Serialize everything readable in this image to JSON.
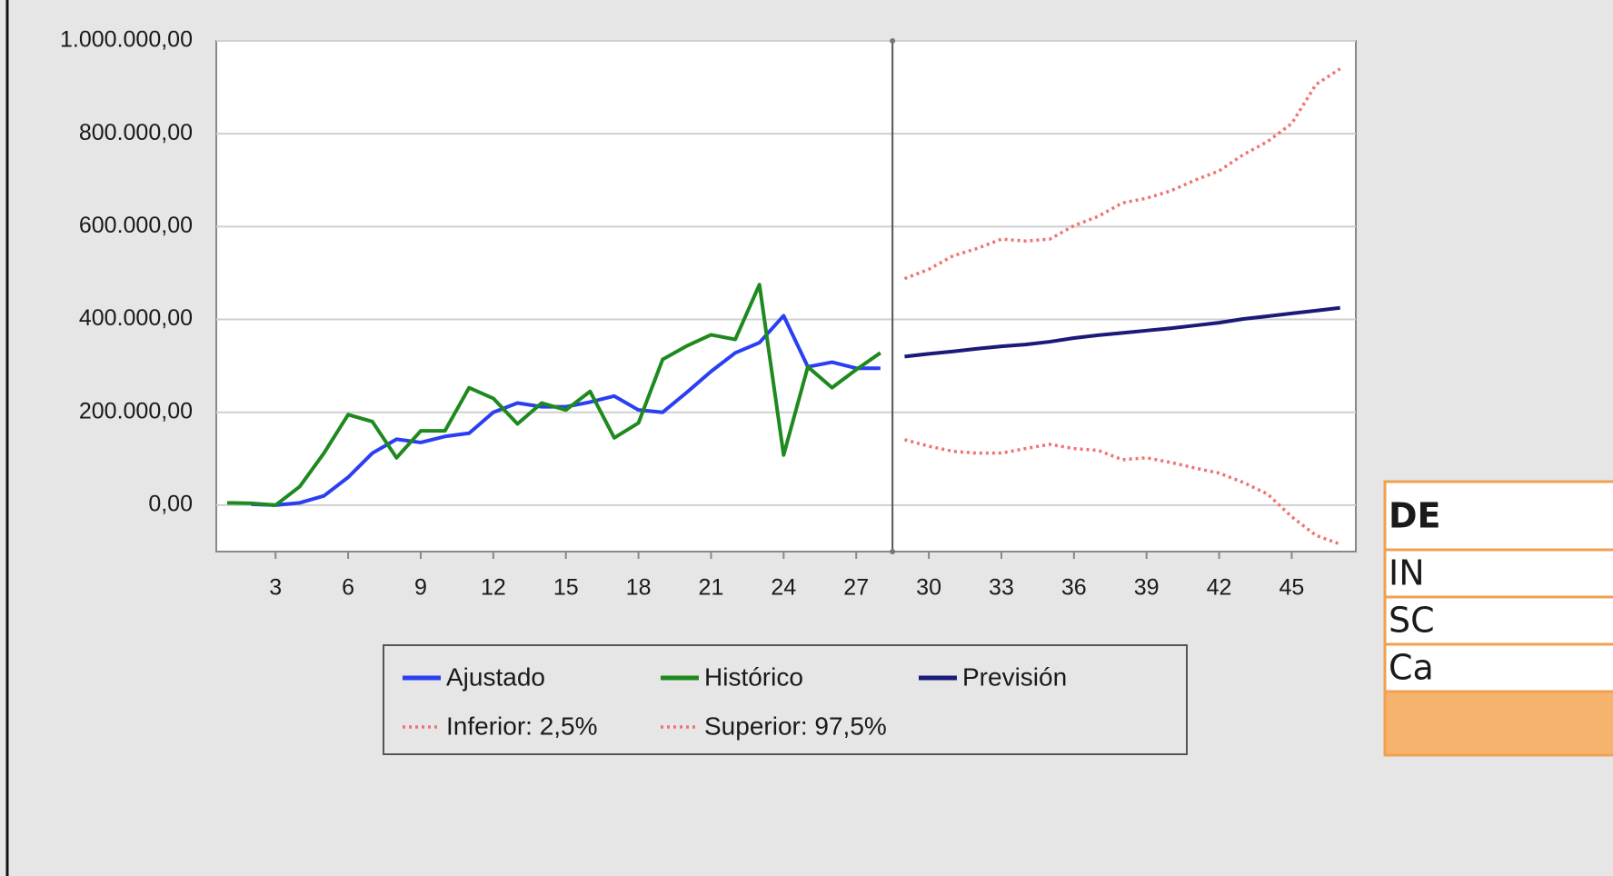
{
  "chart_data": {
    "type": "line",
    "xlim": [
      0.55,
      47.65
    ],
    "ylim": [
      -100000,
      1000000
    ],
    "xticks": [
      3,
      6,
      9,
      12,
      15,
      18,
      21,
      24,
      27,
      30,
      33,
      36,
      39,
      42,
      45
    ],
    "yticks": [
      {
        "value": 0,
        "label": "0,00"
      },
      {
        "value": 200000,
        "label": "200.000,00"
      },
      {
        "value": 400000,
        "label": "400.000,00"
      },
      {
        "value": 600000,
        "label": "600.000,00"
      },
      {
        "value": 800000,
        "label": "800.000,00"
      },
      {
        "value": 1000000,
        "label": "1.000.000,00"
      }
    ],
    "grid": true,
    "legend": "bottom",
    "series": [
      {
        "name": "Ajustado",
        "color": "#2b3ff2",
        "style": "solid",
        "x": [
          2,
          3,
          4,
          5,
          6,
          7,
          8,
          9,
          10,
          11,
          12,
          13,
          14,
          15,
          16,
          17,
          18,
          19,
          20,
          21,
          22,
          23,
          24,
          25,
          26,
          27,
          28
        ],
        "values": [
          2000,
          0,
          5000,
          20000,
          60000,
          112000,
          142000,
          135000,
          148000,
          155000,
          200000,
          220000,
          212000,
          212000,
          222000,
          235000,
          205000,
          200000,
          243000,
          288000,
          328000,
          350000,
          408000,
          298000,
          308000,
          295000,
          295000
        ]
      },
      {
        "name": "Histórico",
        "color": "#1e8a1e",
        "style": "solid",
        "x": [
          1,
          2,
          3,
          4,
          5,
          6,
          7,
          8,
          9,
          10,
          11,
          12,
          13,
          14,
          15,
          16,
          17,
          18,
          19,
          20,
          21,
          22,
          23,
          24,
          25,
          26,
          27,
          28
        ],
        "values": [
          5000,
          4000,
          0,
          40000,
          112000,
          195000,
          180000,
          102000,
          160000,
          160000,
          253000,
          230000,
          175000,
          220000,
          205000,
          245000,
          145000,
          177000,
          314000,
          343000,
          367000,
          357000,
          475000,
          108000,
          298000,
          253000,
          292000,
          328000
        ]
      },
      {
        "name": "Previsión",
        "color": "#1a1a78",
        "style": "solid",
        "x": [
          29,
          30,
          31,
          32,
          33,
          34,
          35,
          36,
          37,
          38,
          39,
          40,
          41,
          42,
          43,
          44,
          45,
          46,
          47
        ],
        "values": [
          320000,
          326000,
          331000,
          337000,
          342000,
          346000,
          352000,
          360000,
          366000,
          371000,
          376000,
          381000,
          387000,
          393000,
          401000,
          407000,
          413000,
          419000,
          425000
        ]
      },
      {
        "name": "Inferior: 2,5%",
        "color": "#f07272",
        "style": "dotted",
        "x": [
          29,
          30,
          31,
          32,
          33,
          34,
          35,
          36,
          37,
          38,
          39,
          40,
          41,
          42,
          43,
          44,
          45,
          46,
          47
        ],
        "values": [
          141000,
          127000,
          116000,
          112000,
          112000,
          122000,
          131000,
          122000,
          118000,
          98000,
          102000,
          92000,
          80000,
          69000,
          49000,
          24000,
          -25000,
          -65000,
          -84000
        ]
      },
      {
        "name": "Superior: 97,5%",
        "color": "#f07272",
        "style": "dotted",
        "x": [
          29,
          30,
          31,
          32,
          33,
          34,
          35,
          36,
          37,
          38,
          39,
          40,
          41,
          42,
          43,
          44,
          45,
          46,
          47
        ],
        "values": [
          488000,
          508000,
          537000,
          553000,
          573000,
          569000,
          573000,
          602000,
          622000,
          651000,
          661000,
          677000,
          700000,
          720000,
          755000,
          783000,
          822000,
          906000,
          940000
        ]
      }
    ]
  },
  "side_table": {
    "rows": [
      "DE",
      "IN",
      "SC",
      "Ca"
    ]
  }
}
